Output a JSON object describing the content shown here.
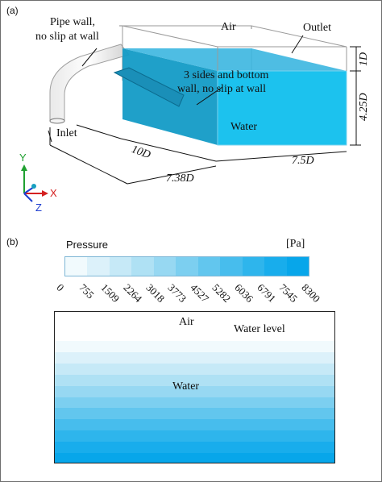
{
  "panel_a": {
    "label": "(a)",
    "pipe_wall_line1": "Pipe wall,",
    "pipe_wall_line2": "no slip at wall",
    "air": "Air",
    "outlet": "Outlet",
    "sides_line1": "3 sides and bottom",
    "sides_line2": "wall, no slip at wall",
    "water": "Water",
    "inlet": "Inlet",
    "dim_1d": "1D",
    "dim_425d": "4.25D",
    "dim_10d": "10D",
    "dim_738d": "7.38D",
    "dim_75d": "7.5D",
    "axis_y": "Y",
    "axis_x": "X",
    "axis_z": "Z"
  },
  "panel_b": {
    "label": "(b)",
    "legend_title": "Pressure",
    "legend_unit": "[Pa]",
    "ticks": [
      "0",
      "755",
      "1509",
      "2264",
      "3018",
      "3773",
      "4527",
      "5282",
      "6036",
      "6791",
      "7545",
      "8300"
    ],
    "legend_colors": [
      "#f1fafd",
      "#dcf1fa",
      "#c6e9f7",
      "#afe1f4",
      "#97d8f2",
      "#7ccff0",
      "#62c6ee",
      "#47bded",
      "#2eb5ec",
      "#18adec",
      "#07a6ea"
    ],
    "air": "Air",
    "water_level": "Water level",
    "water": "Water",
    "air_fraction": 0.19
  },
  "colors": {
    "water_front": "#1cc2ee",
    "water_side": "#139bc6",
    "water_top": "#3bb6e0",
    "accent_red": "#d42020",
    "accent_green": "#1fa030",
    "accent_blue": "#1f3fd0"
  }
}
